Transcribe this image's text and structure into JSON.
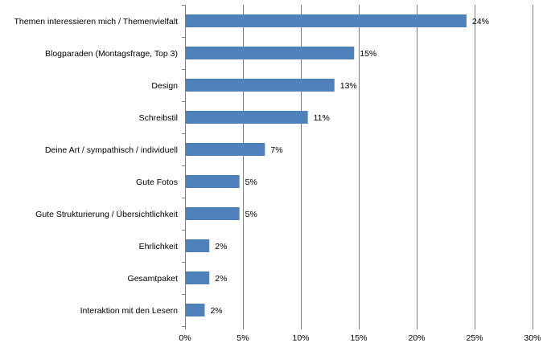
{
  "chart_data": {
    "type": "bar",
    "orientation": "horizontal",
    "title": "",
    "xlabel": "",
    "ylabel": "",
    "categories": [
      "Themen interessieren mich / Themenvielfalt",
      "Blogparaden (Montagsfrage, Top 3)",
      "Design",
      "Schreibstil",
      "Deine Art / sympathisch / individuell",
      "Gute Fotos",
      "Gute Strukturierung / Übersichtlichkeit",
      "Ehrlichkeit",
      "Gesamtpaket",
      "Interaktion mit den Lesern"
    ],
    "values": [
      24.3,
      14.6,
      12.9,
      10.6,
      6.9,
      4.7,
      4.7,
      2.1,
      2.1,
      1.7
    ],
    "data_labels": [
      "24%",
      "15%",
      "13%",
      "11%",
      "7%",
      "5%",
      "5%",
      "2%",
      "2%",
      "2%"
    ],
    "xlim": [
      0,
      30
    ],
    "xticks": [
      0,
      5,
      10,
      15,
      20,
      25,
      30
    ],
    "xtick_labels": [
      "0%",
      "5%",
      "10%",
      "15%",
      "20%",
      "25%",
      "30%"
    ],
    "grid": "vertical",
    "legend": "none",
    "bar_color": "#4f81bd"
  }
}
